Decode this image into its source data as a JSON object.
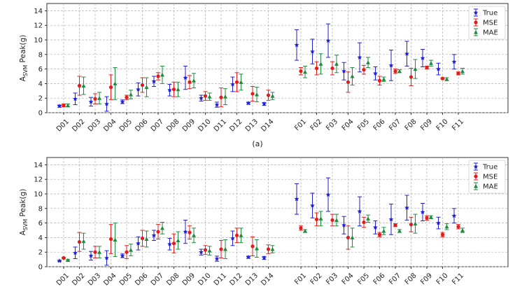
{
  "figure": {
    "caption_a": "(a)"
  },
  "chart_data": [
    {
      "type": "scatter",
      "title": "",
      "xlabel": "",
      "ylabel": "A_SVM Peak(g)",
      "ylabel_main": "A",
      "ylabel_sub": "SVM",
      "ylabel_rest": " Peak(g)",
      "ylim": [
        0,
        15
      ],
      "yticks": [
        0,
        2,
        4,
        6,
        8,
        10,
        12,
        14
      ],
      "grid": true,
      "legend_position": "top-right",
      "categories": [
        "D01",
        "D02",
        "D03",
        "D04",
        "D05",
        "D06",
        "D07",
        "D08",
        "D09",
        "D10",
        "D11",
        "D12",
        "D13",
        "D14",
        "F01",
        "F02",
        "F03",
        "F04",
        "F05",
        "F06",
        "F07",
        "F08",
        "F09",
        "F10",
        "F11"
      ],
      "series": [
        {
          "name": "True",
          "color": "#1f1fd6",
          "marker": "star",
          "values": [
            0.9,
            1.9,
            1.5,
            1.2,
            1.5,
            3.2,
            4.3,
            3.1,
            4.8,
            2.0,
            1.1,
            3.9,
            1.3,
            1.2,
            9.3,
            8.4,
            9.9,
            5.7,
            7.6,
            5.4,
            6.5,
            8.1,
            7.5,
            6.0,
            7.0
          ],
          "err": [
            0.15,
            0.8,
            0.6,
            1.0,
            0.25,
            0.9,
            0.7,
            0.8,
            1.6,
            0.4,
            0.35,
            1.0,
            0.15,
            0.2,
            2.1,
            1.7,
            2.3,
            1.2,
            2.0,
            0.9,
            2.1,
            1.7,
            1.2,
            0.8,
            1.0
          ]
        },
        {
          "name": "MSE",
          "color": "#e21b1b",
          "marker": "circle",
          "values": [
            1.0,
            3.7,
            1.9,
            3.5,
            2.1,
            3.8,
            5.0,
            3.2,
            4.2,
            2.3,
            2.1,
            4.2,
            2.6,
            2.4,
            5.7,
            6.1,
            6.1,
            4.2,
            5.9,
            4.4,
            5.7,
            4.9,
            6.2,
            4.7,
            5.4
          ],
          "err": [
            0.2,
            1.3,
            0.7,
            1.7,
            0.3,
            1.0,
            0.5,
            1.0,
            0.9,
            0.6,
            1.3,
            1.3,
            1.0,
            0.7,
            0.5,
            0.9,
            0.9,
            1.4,
            0.6,
            0.6,
            0.3,
            1.2,
            0.2,
            0.1,
            0.2
          ]
        },
        {
          "name": "MAE",
          "color": "#1f8a3c",
          "marker": "tri",
          "values": [
            1.0,
            3.7,
            2.0,
            4.0,
            2.5,
            3.5,
            5.2,
            3.2,
            4.4,
            2.2,
            2.2,
            4.2,
            2.5,
            2.3,
            5.6,
            6.7,
            6.7,
            5.0,
            6.9,
            4.6,
            5.7,
            6.0,
            6.8,
            4.6,
            5.7
          ],
          "err": [
            0.2,
            1.2,
            0.8,
            2.2,
            0.6,
            1.3,
            1.2,
            1.0,
            1.0,
            0.5,
            1.1,
            1.1,
            1.0,
            0.5,
            0.8,
            1.4,
            1.2,
            1.2,
            0.7,
            0.3,
            0.2,
            1.3,
            0.4,
            0.2,
            0.4
          ]
        }
      ]
    },
    {
      "type": "scatter",
      "title": "",
      "xlabel": "",
      "ylabel": "A_SVM Peak(g)",
      "ylabel_main": "A",
      "ylabel_sub": "SVM",
      "ylabel_rest": " Peak(g)",
      "ylim": [
        0,
        15
      ],
      "yticks": [
        0,
        2,
        4,
        6,
        8,
        10,
        12,
        14
      ],
      "grid": true,
      "legend_position": "top-right",
      "categories": [
        "D01",
        "D02",
        "D03",
        "D04",
        "D05",
        "D06",
        "D07",
        "D08",
        "D09",
        "D10",
        "D11",
        "D12",
        "D13",
        "D14",
        "F01",
        "F02",
        "F03",
        "F04",
        "F05",
        "F06",
        "F07",
        "F08",
        "F09",
        "F10",
        "F11"
      ],
      "series": [
        {
          "name": "True",
          "color": "#1f1fd6",
          "marker": "star",
          "values": [
            0.8,
            1.9,
            1.5,
            1.2,
            1.5,
            3.2,
            4.3,
            3.1,
            4.8,
            2.0,
            1.1,
            3.9,
            1.3,
            1.2,
            9.3,
            8.4,
            9.9,
            5.7,
            7.6,
            5.4,
            6.5,
            8.1,
            7.5,
            6.0,
            7.0
          ],
          "err": [
            0.1,
            0.8,
            0.6,
            1.0,
            0.25,
            0.9,
            0.7,
            0.8,
            1.6,
            0.4,
            0.35,
            1.0,
            0.15,
            0.2,
            2.1,
            1.7,
            2.3,
            1.2,
            2.0,
            0.9,
            2.1,
            1.7,
            1.2,
            0.8,
            1.0
          ]
        },
        {
          "name": "MSE",
          "color": "#e21b1b",
          "marker": "circle",
          "values": [
            1.2,
            3.4,
            2.0,
            3.8,
            2.0,
            3.9,
            4.8,
            3.2,
            4.7,
            2.3,
            2.4,
            4.3,
            2.8,
            2.4,
            5.3,
            6.5,
            6.4,
            4.0,
            6.1,
            4.4,
            5.7,
            5.8,
            6.7,
            4.4,
            5.5
          ],
          "err": [
            0.1,
            1.3,
            0.8,
            2.0,
            0.9,
            1.1,
            1.0,
            1.3,
            0.9,
            0.6,
            1.2,
            1.0,
            1.3,
            0.6,
            0.3,
            0.9,
            0.8,
            1.6,
            0.7,
            0.3,
            0.2,
            1.0,
            0.3,
            0.3,
            0.3
          ]
        },
        {
          "name": "MAE",
          "color": "#1f8a3c",
          "marker": "tri",
          "values": [
            0.9,
            3.5,
            2.0,
            3.7,
            2.3,
            3.8,
            5.3,
            3.6,
            4.3,
            2.2,
            2.4,
            4.3,
            2.5,
            2.4,
            4.9,
            6.6,
            6.4,
            4.0,
            6.6,
            4.9,
            4.9,
            5.9,
            6.8,
            5.5,
            5.0
          ],
          "err": [
            0.1,
            1.1,
            0.8,
            2.3,
            0.8,
            1.1,
            0.8,
            1.2,
            1.0,
            0.6,
            1.3,
            1.0,
            1.2,
            0.5,
            0.2,
            1.0,
            0.8,
            1.3,
            0.5,
            0.5,
            0.2,
            1.3,
            0.2,
            0.4,
            0.3
          ]
        }
      ]
    }
  ]
}
